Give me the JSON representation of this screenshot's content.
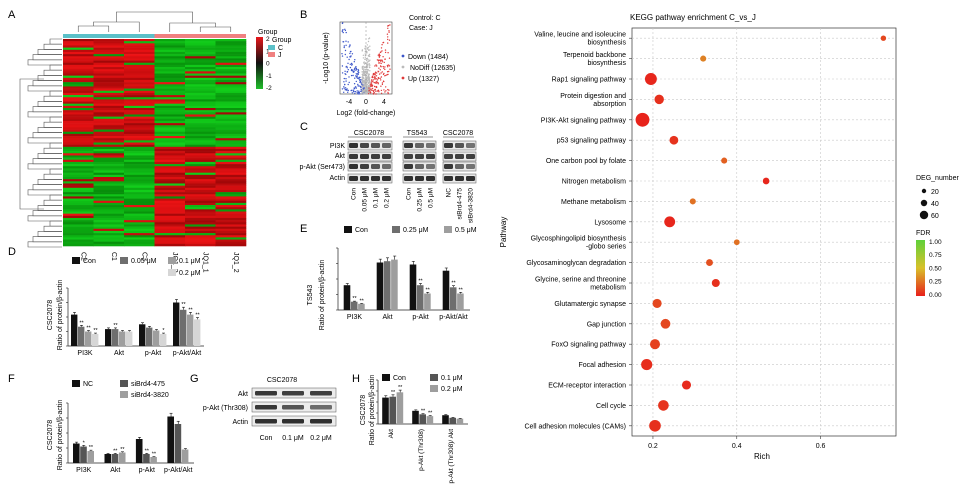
{
  "panels": {
    "A": {
      "letter": "A",
      "legend_title": "Group",
      "legend_ticks": [
        "2",
        "1",
        "0",
        "-1",
        "-2"
      ],
      "group_legend_title": "Group",
      "group_items": [
        {
          "label": "C",
          "color": "#5bc0c8"
        },
        {
          "label": "J",
          "color": "#f08080"
        }
      ],
      "columns": [
        "C2",
        "C1",
        "C3",
        "JQ1_3",
        "JQ1_1",
        "JQ1_2"
      ]
    },
    "B": {
      "letter": "B",
      "legend": [
        "Control: C",
        "Case: J"
      ],
      "ylabel": "-Log10 (p-value)",
      "xlabel": "Log2 (fold-change)",
      "xticks": [
        "-4",
        "0",
        "4"
      ],
      "items": [
        {
          "label": "Down (1484)",
          "color": "#3b55c9"
        },
        {
          "label": "NoDiff (12635)",
          "color": "#bbbbbb"
        },
        {
          "label": "Up (1327)",
          "color": "#e03a3a"
        }
      ]
    },
    "C": {
      "letter": "C",
      "groups": [
        "CSC2078",
        "TS543",
        "CSC2078"
      ],
      "rows": [
        "PI3K",
        "Akt",
        "p-Akt (Ser473)",
        "Actin"
      ],
      "lanes": [
        "Con",
        "0.05 μM",
        "0.1 μM",
        "0.2 μM",
        "Con",
        "0.25 μM",
        "0.5 μM",
        "NC",
        "siBrd4-475",
        "siBrd4-3820"
      ]
    },
    "D": {
      "letter": "D",
      "ylabel": "Ratio of protein/β-actin",
      "cell": "CSC2078",
      "legend": [
        "Con",
        "0.05 μM",
        "0.1 μM",
        "0.2 μM"
      ],
      "colors": [
        "#111111",
        "#6e6e6e",
        "#9e9e9e",
        "#d6d6d6"
      ],
      "categories": [
        "PI3K",
        "Akt",
        "p-Akt",
        "p-Akt/Akt"
      ],
      "values": [
        [
          0.65,
          0.4,
          0.3,
          0.25
        ],
        [
          0.35,
          0.35,
          0.3,
          0.3
        ],
        [
          0.45,
          0.38,
          0.32,
          0.25
        ],
        [
          0.9,
          0.75,
          0.65,
          0.55
        ]
      ],
      "sig": [
        "**",
        "**",
        "**",
        "**",
        "",
        "",
        "",
        "",
        "*",
        "**",
        "**",
        "**",
        "*",
        "**",
        "**",
        "**"
      ],
      "ylim": [
        0,
        1.2
      ]
    },
    "E": {
      "letter": "E",
      "ylabel": "Ratio of protein/β-actin",
      "cell": "TS543",
      "legend": [
        "Con",
        "0.25 μM",
        "0.5 μM"
      ],
      "colors": [
        "#111111",
        "#6e6e6e",
        "#9e9e9e"
      ],
      "categories": [
        "PI3K",
        "Akt",
        "p-Akt",
        "p-Akt/Akt"
      ],
      "values": [
        [
          0.6,
          0.2,
          0.15
        ],
        [
          1.15,
          1.18,
          1.22
        ],
        [
          1.1,
          0.6,
          0.4
        ],
        [
          0.95,
          0.55,
          0.4
        ]
      ],
      "sig": [
        "**",
        "**",
        "",
        "",
        "**",
        "**",
        "**",
        "**"
      ],
      "ylim": [
        0,
        1.5
      ]
    },
    "F": {
      "letter": "F",
      "ylabel": "Ratio of protein/β-actin",
      "cell": "CSC2078",
      "legend": [
        "NC",
        "siBrd4-475",
        "siBrd4-3820"
      ],
      "colors": [
        "#111111",
        "#555555",
        "#9e9e9e"
      ],
      "categories": [
        "PI3K",
        "Akt",
        "p-Akt",
        "p-Akt/Akt"
      ],
      "values": [
        [
          0.65,
          0.55,
          0.4
        ],
        [
          0.3,
          0.3,
          0.35
        ],
        [
          0.8,
          0.3,
          0.2
        ],
        [
          1.55,
          1.3,
          0.45
        ]
      ],
      "sig": [
        "*",
        "**",
        "**",
        "**",
        "**",
        "**"
      ],
      "ylim": [
        0,
        2.0
      ]
    },
    "G": {
      "letter": "G",
      "group": "CSC2078",
      "rows": [
        "Akt",
        "p-Akt (Thr308)",
        "Actin"
      ],
      "lanes": [
        "Con",
        "0.1 μM",
        "0.2 μM"
      ]
    },
    "H": {
      "letter": "H",
      "ylabel": "Ratio of protein/β-actin",
      "cell": "CSC2078",
      "legend": [
        "Con",
        "0.1 μM",
        "0.2 μM"
      ],
      "colors": [
        "#111111",
        "#555555",
        "#9e9e9e"
      ],
      "categories": [
        "Akt",
        "p-Akt (Thr308)",
        "p-Akt (Thr308)/ Akt"
      ],
      "values": [
        [
          1.5,
          1.55,
          1.8
        ],
        [
          0.75,
          0.55,
          0.45
        ],
        [
          0.5,
          0.35,
          0.3
        ]
      ],
      "sig": [
        "**",
        "**",
        "**",
        "**"
      ],
      "ylim": [
        0,
        2.5
      ]
    }
  },
  "chart_data": [
    {
      "type": "bar",
      "title": "",
      "ylabel": "Ratio of protein/β-actin",
      "categories": [
        "PI3K",
        "Akt",
        "p-Akt",
        "p-Akt/Akt"
      ],
      "series": [
        {
          "name": "Con",
          "values": [
            0.65,
            0.35,
            0.45,
            0.9
          ]
        },
        {
          "name": "0.05 μM",
          "values": [
            0.4,
            0.35,
            0.38,
            0.75
          ]
        },
        {
          "name": "0.1 μM",
          "values": [
            0.3,
            0.3,
            0.32,
            0.65
          ]
        },
        {
          "name": "0.2 μM",
          "values": [
            0.25,
            0.3,
            0.25,
            0.55
          ]
        }
      ],
      "ylim": [
        0,
        1.2
      ]
    },
    {
      "type": "bar",
      "title": "",
      "ylabel": "Ratio of protein/β-actin",
      "categories": [
        "PI3K",
        "Akt",
        "p-Akt",
        "p-Akt/Akt"
      ],
      "series": [
        {
          "name": "Con",
          "values": [
            0.6,
            1.15,
            1.1,
            0.95
          ]
        },
        {
          "name": "0.25 μM",
          "values": [
            0.2,
            1.18,
            0.6,
            0.55
          ]
        },
        {
          "name": "0.5 μM",
          "values": [
            0.15,
            1.22,
            0.4,
            0.4
          ]
        }
      ],
      "ylim": [
        0,
        1.5
      ]
    },
    {
      "type": "bar",
      "title": "",
      "ylabel": "Ratio of protein/β-actin",
      "categories": [
        "PI3K",
        "Akt",
        "p-Akt",
        "p-Akt/Akt"
      ],
      "series": [
        {
          "name": "NC",
          "values": [
            0.65,
            0.3,
            0.8,
            1.55
          ]
        },
        {
          "name": "siBrd4-475",
          "values": [
            0.55,
            0.3,
            0.3,
            1.3
          ]
        },
        {
          "name": "siBrd4-3820",
          "values": [
            0.4,
            0.35,
            0.2,
            0.45
          ]
        }
      ],
      "ylim": [
        0,
        2.0
      ]
    },
    {
      "type": "bar",
      "title": "",
      "ylabel": "Ratio of protein/β-actin",
      "categories": [
        "Akt",
        "p-Akt (Thr308)",
        "p-Akt (Thr308)/ Akt"
      ],
      "series": [
        {
          "name": "Con",
          "values": [
            1.5,
            0.75,
            0.5
          ]
        },
        {
          "name": "0.1 μM",
          "values": [
            1.55,
            0.55,
            0.35
          ]
        },
        {
          "name": "0.2 μM",
          "values": [
            1.8,
            0.45,
            0.3
          ]
        }
      ],
      "ylim": [
        0,
        2.5
      ]
    },
    {
      "type": "scatter",
      "title": "KEGG pathway enrichment C_vs_J",
      "xlabel": "Rich",
      "ylabel": "Pathway",
      "xlim": [
        0.15,
        0.78
      ],
      "x_ticks": [
        "0.2",
        "0.4",
        "0.6"
      ],
      "size_legend_title": "DEG_number",
      "size_legend": [
        "20",
        "40",
        "60"
      ],
      "color_legend_title": "FDR",
      "color_ticks": [
        "1.00",
        "0.75",
        "0.50",
        "0.25",
        "0.00"
      ],
      "pathways": [
        "Valine, leucine and isoleucine biosynthesis",
        "Terpenoid backbone biosynthesis",
        "Rap1 signaling pathway",
        "Protein digestion and absorption",
        "PI3K-Akt signaling pathway",
        "p53 signaling pathway",
        "One carbon pool by folate",
        "Nitrogen metabolism",
        "Methane metabolism",
        "Lysosome",
        "Glycosphingolipid biosynthesis -globo series",
        "Glycosaminoglycan degradation",
        "Glycine, serine and threonine metabolism",
        "Glutamatergic synapse",
        "Gap junction",
        "FoxO signaling pathway",
        "Focal adhesion",
        "ECM-receptor interaction",
        "Cell cycle",
        "Cell adhesion molecules (CAMs)"
      ],
      "rich": [
        0.75,
        0.32,
        0.195,
        0.215,
        0.175,
        0.25,
        0.37,
        0.47,
        0.295,
        0.24,
        0.4,
        0.335,
        0.35,
        0.21,
        0.23,
        0.205,
        0.185,
        0.28,
        0.225,
        0.205
      ],
      "deg": [
        4,
        6,
        40,
        22,
        58,
        18,
        6,
        8,
        6,
        32,
        5,
        9,
        14,
        20,
        24,
        26,
        34,
        20,
        30,
        38
      ],
      "fdr": [
        0.12,
        0.3,
        0.02,
        0.05,
        0.01,
        0.06,
        0.2,
        0.02,
        0.25,
        0.02,
        0.25,
        0.15,
        0.05,
        0.12,
        0.12,
        0.1,
        0.04,
        0.03,
        0.06,
        0.05
      ]
    }
  ]
}
